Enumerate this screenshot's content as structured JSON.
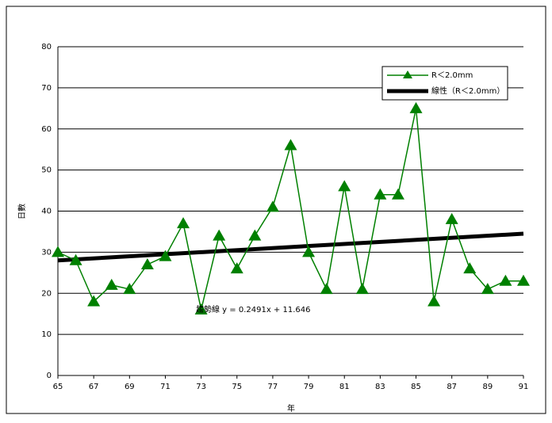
{
  "chart_data": {
    "type": "line",
    "x": [
      65,
      66,
      67,
      68,
      69,
      70,
      71,
      72,
      73,
      74,
      75,
      76,
      77,
      78,
      79,
      80,
      81,
      82,
      83,
      84,
      85,
      86,
      87,
      88,
      89,
      90,
      91
    ],
    "series": [
      {
        "name": "R＜2.0mm",
        "color": "#008000",
        "values": [
          30,
          28,
          18,
          22,
          21,
          27,
          29,
          37,
          16,
          34,
          26,
          34,
          41,
          56,
          30,
          21,
          46,
          21,
          44,
          44,
          65,
          18,
          38,
          26,
          21,
          23,
          23
        ]
      }
    ],
    "trendline": {
      "name": "線性（R＜2.0mm）",
      "color": "#000000",
      "x": [
        65,
        91
      ],
      "values": [
        28,
        34.5
      ]
    },
    "annotation": "趨勢線 y = 0.2491x + 11.646",
    "xlabel": "年",
    "ylabel": "日數",
    "xlim": [
      65,
      91
    ],
    "xticks": [
      65,
      67,
      69,
      71,
      73,
      75,
      77,
      79,
      81,
      83,
      85,
      87,
      89,
      91
    ],
    "ylim": [
      0,
      80
    ],
    "yticks": [
      0,
      10,
      20,
      30,
      40,
      50,
      60,
      70,
      80
    ],
    "grid": true,
    "legend": "upper right"
  }
}
